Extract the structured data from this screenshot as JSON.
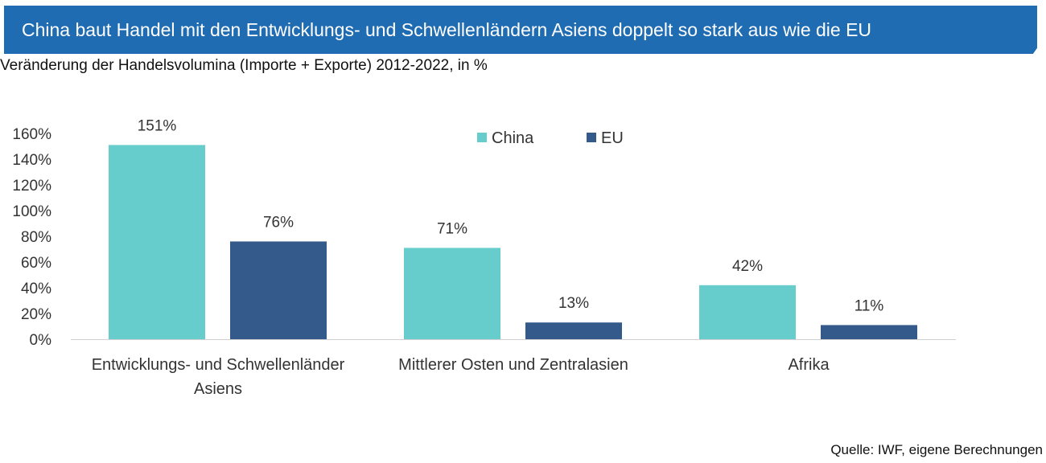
{
  "header": {
    "title": "China baut Handel mit den Entwicklungs- und Schwellenländern Asiens doppelt so stark aus wie die EU"
  },
  "subtitle": "Veränderung der Handelsvolumina (Importe + Exporte) 2012-2022, in %",
  "source": "Quelle: IWF, eigene Berechnungen",
  "colors": {
    "china": "#66cdcc",
    "eu": "#345a8c",
    "banner": "#1f6cb3"
  },
  "chart_data": {
    "type": "bar",
    "title": "",
    "categories": [
      [
        "Entwicklungs- und Schwellenländer",
        "Asiens"
      ],
      [
        "Mittlerer Osten und Zentralasien"
      ],
      [
        "Afrika"
      ]
    ],
    "series": [
      {
        "name": "China",
        "values": [
          151,
          71,
          42
        ],
        "labels": [
          "151%",
          "71%",
          "42%"
        ]
      },
      {
        "name": "EU",
        "values": [
          76,
          13,
          11
        ],
        "labels": [
          "76%",
          "13%",
          "11%"
        ]
      }
    ],
    "yticks": [
      "0%",
      "20%",
      "40%",
      "60%",
      "80%",
      "100%",
      "120%",
      "140%",
      "160%"
    ],
    "ylim": [
      0,
      160
    ],
    "xlabel": "",
    "ylabel": "",
    "legend": "top-center",
    "grid": false
  }
}
